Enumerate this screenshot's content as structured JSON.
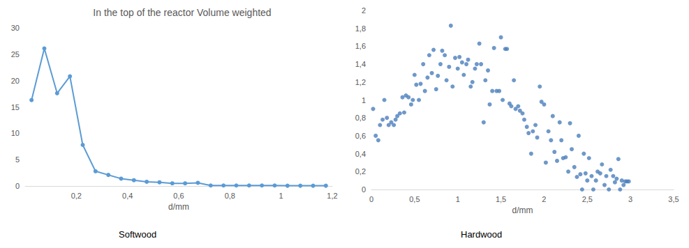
{
  "chart_data": [
    {
      "type": "line",
      "title": "In the top of the reactor Volume weighted",
      "subtitle": "Softwood",
      "xlabel": "d/mm",
      "color": "#5b9bd5",
      "marker": "circle",
      "grid": false,
      "x": [
        0.025,
        0.075,
        0.125,
        0.175,
        0.225,
        0.275,
        0.325,
        0.375,
        0.425,
        0.475,
        0.525,
        0.575,
        0.625,
        0.675,
        0.725,
        0.775,
        0.825,
        0.875,
        0.925,
        0.975,
        1.025,
        1.075,
        1.125,
        1.175
      ],
      "values": [
        16.3,
        26.1,
        17.6,
        20.8,
        7.8,
        2.8,
        2.1,
        1.4,
        1.1,
        0.8,
        0.7,
        0.5,
        0.5,
        0.6,
        0.1,
        0.1,
        0.1,
        0.1,
        0.1,
        0.1,
        0.05,
        0.05,
        0.05,
        0.05
      ],
      "xlim": [
        0,
        1.2
      ],
      "xticks": [
        {
          "value": 0.2,
          "label": "0,2"
        },
        {
          "value": 0.4,
          "label": "0,4"
        },
        {
          "value": 0.6,
          "label": "0,6"
        },
        {
          "value": 0.8,
          "label": "0,8"
        },
        1,
        {
          "value": 1.2,
          "label": "1,2"
        }
      ],
      "ylim": [
        0,
        30
      ],
      "yticks": [
        0,
        5,
        10,
        15,
        20,
        25,
        30
      ]
    },
    {
      "type": "scatter",
      "subtitle": "Hardwood",
      "xlabel": "d/mm",
      "color": "#4a7ebb",
      "marker": "circle",
      "grid": false,
      "x": [
        0.02,
        0.05,
        0.08,
        0.1,
        0.13,
        0.15,
        0.18,
        0.2,
        0.23,
        0.26,
        0.28,
        0.3,
        0.33,
        0.36,
        0.38,
        0.4,
        0.43,
        0.46,
        0.48,
        0.5,
        0.52,
        0.55,
        0.57,
        0.6,
        0.62,
        0.65,
        0.67,
        0.7,
        0.72,
        0.75,
        0.77,
        0.8,
        0.82,
        0.85,
        0.87,
        0.9,
        0.92,
        0.94,
        0.97,
        1.0,
        1.02,
        1.05,
        1.07,
        1.1,
        1.12,
        1.15,
        1.17,
        1.2,
        1.22,
        1.25,
        1.27,
        1.3,
        1.32,
        1.35,
        1.37,
        1.4,
        1.42,
        1.45,
        1.48,
        1.5,
        1.52,
        1.55,
        1.57,
        1.6,
        1.62,
        1.65,
        1.67,
        1.7,
        1.72,
        1.75,
        1.77,
        1.8,
        1.82,
        1.85,
        1.87,
        1.9,
        1.92,
        1.95,
        1.97,
        2.0,
        2.02,
        2.05,
        2.08,
        2.1,
        2.12,
        2.15,
        2.18,
        2.2,
        2.22,
        2.25,
        2.28,
        2.3,
        2.32,
        2.35,
        2.38,
        2.4,
        2.42,
        2.44,
        2.46,
        2.48,
        2.5,
        2.52,
        2.55,
        2.57,
        2.6,
        2.62,
        2.65,
        2.67,
        2.7,
        2.72,
        2.75,
        2.77,
        2.8,
        2.82,
        2.84,
        2.86,
        2.88,
        2.9,
        2.92,
        2.94,
        2.96,
        2.98
      ],
      "values": [
        0.9,
        0.6,
        0.55,
        0.72,
        0.78,
        1.0,
        0.8,
        0.72,
        0.75,
        0.72,
        0.78,
        0.82,
        0.85,
        1.03,
        0.86,
        1.05,
        1.03,
        0.95,
        1.0,
        1.28,
        1.17,
        1.0,
        1.18,
        1.4,
        1.1,
        1.25,
        1.5,
        1.3,
        1.56,
        1.12,
        1.27,
        1.4,
        1.55,
        1.5,
        1.22,
        1.37,
        1.83,
        1.15,
        1.47,
        1.35,
        1.48,
        1.42,
        1.28,
        1.4,
        1.45,
        1.15,
        1.2,
        1.35,
        1.4,
        1.63,
        1.4,
        0.75,
        1.22,
        1.33,
        0.95,
        1.1,
        1.58,
        1.1,
        1.1,
        1.7,
        1.0,
        1.57,
        1.57,
        0.96,
        0.93,
        1.22,
        0.9,
        0.93,
        0.88,
        0.85,
        0.78,
        0.7,
        0.63,
        0.4,
        0.65,
        0.72,
        0.58,
        1.15,
        0.98,
        0.95,
        0.3,
        0.65,
        0.55,
        0.82,
        0.42,
        0.32,
        0.75,
        0.55,
        0.35,
        0.36,
        0.2,
        0.74,
        0.45,
        0.25,
        0.14,
        0.6,
        0.17,
        0.0,
        0.4,
        0.18,
        0.1,
        0.35,
        0.15,
        0.0,
        0.1,
        0.2,
        0.18,
        0.28,
        0.05,
        0.15,
        0.0,
        0.22,
        0.15,
        0.08,
        0.12,
        0.34,
        0.0,
        0.1,
        0.05,
        0.09,
        0.09,
        0.09
      ],
      "xlim": [
        0,
        3.5
      ],
      "xticks": [
        0,
        {
          "value": 0.5,
          "label": "0,5"
        },
        1,
        {
          "value": 1.5,
          "label": "1,5"
        },
        2,
        {
          "value": 2.5,
          "label": "2,5"
        },
        3,
        {
          "value": 3.5,
          "label": "3,5"
        }
      ],
      "ylim": [
        0,
        2
      ],
      "yticks": [
        0,
        {
          "value": 0.2,
          "label": "0,2"
        },
        {
          "value": 0.4,
          "label": "0,4"
        },
        {
          "value": 0.6,
          "label": "0,6"
        },
        {
          "value": 0.8,
          "label": "0,8"
        },
        1,
        {
          "value": 1.2,
          "label": "1,2"
        },
        {
          "value": 1.4,
          "label": "1,4"
        },
        {
          "value": 1.6,
          "label": "1,6"
        },
        {
          "value": 1.8,
          "label": "1,8"
        },
        2
      ]
    }
  ]
}
